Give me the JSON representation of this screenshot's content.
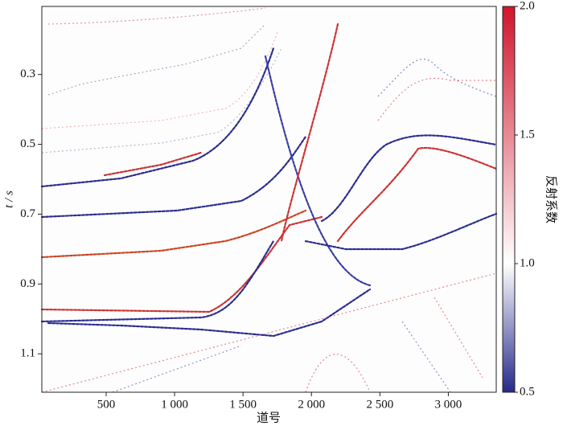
{
  "chart_data": {
    "type": "image",
    "xlabel": "道号",
    "ylabel": "t / s",
    "colorbar_label": "反射系数",
    "xlim": [
      30,
      3350
    ],
    "xticks": [
      500,
      {
        "value": 1000,
        "label": "1 000"
      },
      {
        "value": 1500,
        "label": "1 500"
      },
      {
        "value": 2000,
        "label": "2 000"
      },
      {
        "value": 2500,
        "label": "2 500"
      },
      {
        "value": 3000,
        "label": "3 000"
      }
    ],
    "ylim": [
      0.105,
      1.21
    ],
    "y_inverted": true,
    "yticks": [
      0.3,
      0.5,
      0.7,
      0.9,
      1.1
    ],
    "clim": [
      0.5,
      2
    ],
    "cticks": [
      {
        "value": 2,
        "label": "2.0"
      },
      1.5,
      {
        "value": 1,
        "label": "1.0"
      },
      0.5
    ],
    "colormap": [
      {
        "value": 0.5,
        "color": "#262a8a"
      },
      {
        "value": 1,
        "color": "#ffffff"
      },
      {
        "value": 2,
        "color": "#d0152c"
      }
    ]
  }
}
